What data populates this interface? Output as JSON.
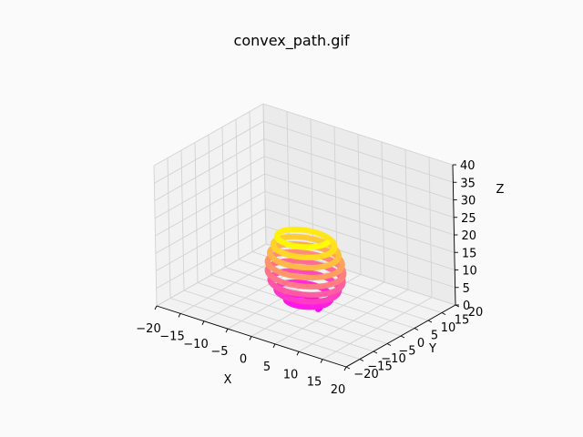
{
  "chart_data": {
    "type": "scatter3d",
    "title": "convex_path.gif",
    "xlabel": "X",
    "ylabel": "Y",
    "zlabel": "Z",
    "xlim": [
      -20,
      20
    ],
    "ylim": [
      -20,
      20
    ],
    "zlim": [
      0,
      40
    ],
    "xticks": [
      "−20",
      "−15",
      "−10",
      "−5",
      "0",
      "5",
      "10",
      "15",
      "20"
    ],
    "yticks": [
      "−20",
      "−15",
      "−10",
      "−5",
      "0",
      "5",
      "10",
      "15",
      "20"
    ],
    "zticks": [
      "0",
      "5",
      "10",
      "15",
      "20",
      "25",
      "30",
      "35",
      "40"
    ],
    "grid": true,
    "colormap": "spring",
    "colors": {
      "low": "#ff00ff",
      "high": "#ffff00"
    },
    "series": [
      {
        "shape": "helix",
        "z_start": 0,
        "z_end": 20,
        "turns": 8,
        "radius_profile": [
          [
            0,
            2.5
          ],
          [
            2.5,
            4.5
          ],
          [
            5,
            6.0
          ],
          [
            7.5,
            6.8
          ],
          [
            10,
            7.0
          ],
          [
            12.5,
            6.8
          ],
          [
            15,
            6.2
          ],
          [
            17.5,
            5.5
          ],
          [
            20,
            4.8
          ]
        ]
      }
    ]
  }
}
